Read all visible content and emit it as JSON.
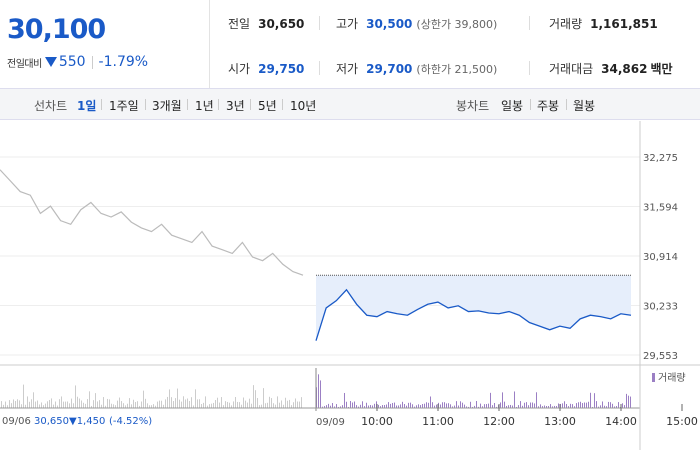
{
  "current_price": "30,100",
  "change": {
    "label": "전일대비",
    "value": "550",
    "pct": "-1.79%"
  },
  "stats": {
    "prev_close": {
      "label": "전일",
      "value": "30,650"
    },
    "high": {
      "label": "고가",
      "value": "30,500",
      "sub": "(상한가 39,800)"
    },
    "volume": {
      "label": "거래량",
      "value": "1,161,851"
    },
    "open": {
      "label": "시가",
      "value": "29,750"
    },
    "low": {
      "label": "저가",
      "value": "29,700",
      "sub": "(하한가 21,500)"
    },
    "amount": {
      "label": "거래대금",
      "value": "34,862",
      "unit": "백만"
    }
  },
  "toolbar": {
    "line_label": "선차트",
    "line_periods": [
      "1일",
      "1주일",
      "3개월",
      "1년",
      "3년",
      "5년",
      "10년"
    ],
    "active_period": "1일",
    "candle_label": "봉차트",
    "candle_periods": [
      "일봉",
      "주봉",
      "월봉"
    ]
  },
  "colors": {
    "accent": "#1a5ac7",
    "prev_line": "#bbbbbb",
    "volume_today": "#9b7fc4",
    "volume_prev": "#cccccc",
    "fill": "#e6eefb"
  },
  "chart_data": {
    "type": "line",
    "y_ticks": [
      "32,275",
      "31,594",
      "30,914",
      "30,233",
      "29,553"
    ],
    "ylim": [
      29553,
      32275
    ],
    "reference_price": 30650,
    "previous_day": {
      "date": "09/06",
      "close": "30,650",
      "change": "▼1,450",
      "change_pct": "(-4.52%)",
      "values": [
        32100,
        31950,
        31800,
        31750,
        31500,
        31600,
        31400,
        31350,
        31550,
        31650,
        31500,
        31450,
        31520,
        31380,
        31300,
        31250,
        31350,
        31200,
        31150,
        31100,
        31250,
        31050,
        31000,
        30950,
        31100,
        30900,
        30850,
        30950,
        30800,
        30700,
        30650
      ]
    },
    "today": {
      "date": "09/09",
      "time_ticks": [
        "10:00",
        "11:00",
        "12:00",
        "13:00",
        "14:00",
        "15:00"
      ],
      "values": [
        29750,
        30200,
        30300,
        30450,
        30250,
        30100,
        30080,
        30150,
        30120,
        30100,
        30180,
        30250,
        30280,
        30200,
        30230,
        30150,
        30160,
        30130,
        30120,
        30150,
        30100,
        30000,
        29950,
        29900,
        29950,
        29920,
        30050,
        30100,
        30080,
        30050,
        30120,
        30100
      ]
    },
    "volume_legend": "거래량"
  }
}
